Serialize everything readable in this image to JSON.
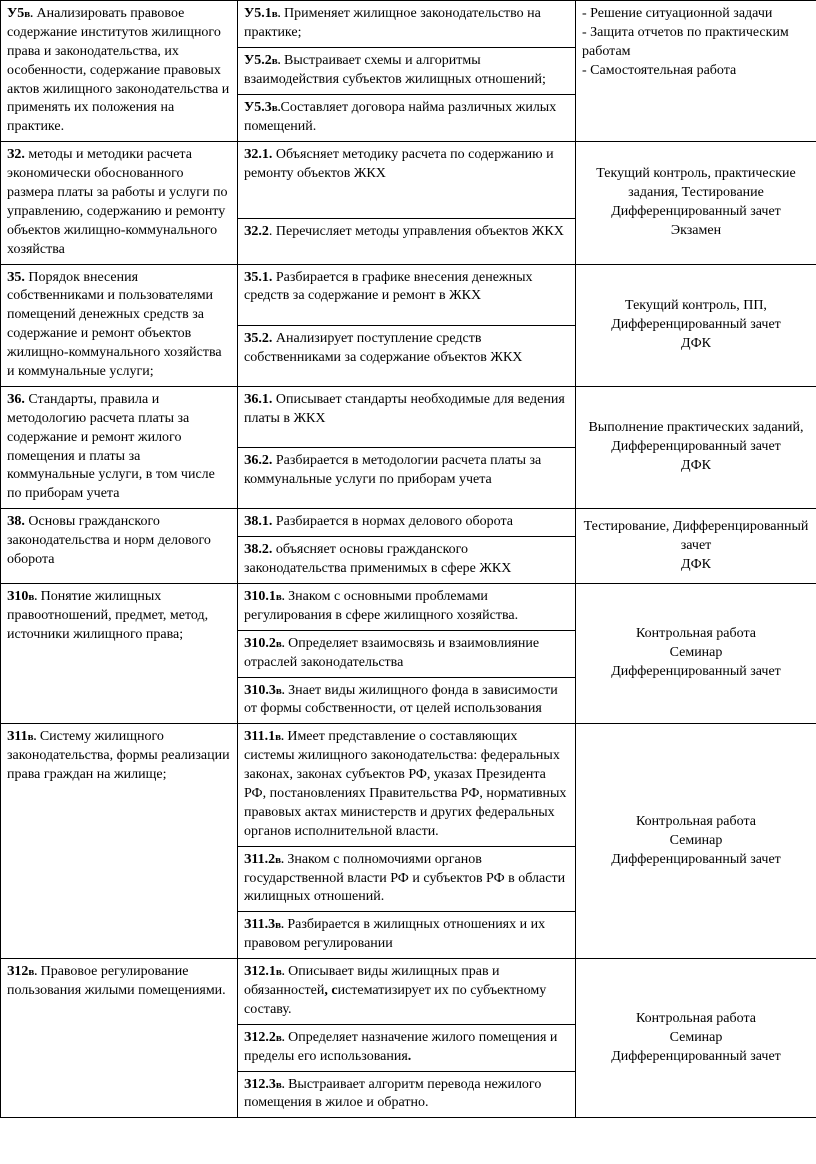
{
  "rows": [
    {
      "c1": {
        "bold": "У5в.",
        "sub": true,
        "text": " Анализировать правовое содержание институтов жилищного права и законодательства, их особенности, содержание правовых актов жилищного законодательства и применять их положения на практике.",
        "rowspan": 3
      },
      "c2": {
        "bold": "У5.1в.",
        "sub": true,
        "text": " Применяет жилищное законодательство на практике;"
      },
      "c3": {
        "text": "- Решение ситуационной задачи<br>- Защита отчетов по практическим работам<br>- Самостоятельная работа",
        "rowspan": 3
      }
    },
    {
      "c2": {
        "bold": "У5.2в.",
        "sub": true,
        "text": " Выстраивает схемы и алгоритмы взаимодействия субъектов жилищных отношений;"
      }
    },
    {
      "c2": {
        "bold": "У5.3в.",
        "sub": true,
        "text": "Составляет договора найма различных жилых помещений."
      }
    },
    {
      "c1": {
        "bold": "З2.",
        "text": " методы и методики расчета экономически обоснованного размера платы за работы и услуги по управлению, содержанию и ремонту объектов жилищно-коммунального хозяйства",
        "rowspan": 2
      },
      "c2": {
        "bold": "З2.1.",
        "text": " Объясняет методику расчета по содержанию и ремонту объектов ЖКХ"
      },
      "c3": {
        "text": "Текущий контроль, практические задания, Тестирование Дифференцированный зачет<br>Экзамен",
        "rowspan": 2,
        "center": true
      }
    },
    {
      "c2": {
        "bold": "З2.2",
        "text": ". Перечисляет методы управления объектов ЖКХ"
      }
    },
    {
      "c1": {
        "bold": "З5.",
        "text": " Порядок внесения собственниками и пользователями помещений денежных средств за содержание и ремонт объектов жилищно-коммунального хозяйства и коммунальные услуги;",
        "rowspan": 2
      },
      "c2": {
        "bold": "З5.1.",
        "text": " Разбирается в графике внесения денежных средств за содержание и ремонт в ЖКХ"
      },
      "c3": {
        "text": "Текущий контроль, ПП, Дифференцированный зачет<br>ДФК",
        "rowspan": 2,
        "center": true
      }
    },
    {
      "c2": {
        "bold": "З5.2.",
        "text": " Анализирует поступление средств собственниками за содержание объектов ЖКХ"
      }
    },
    {
      "c1": {
        "bold": "З6.",
        "text": " Стандарты, правила и методологию расчета платы за содержание и ремонт жилого помещения и платы за коммунальные услуги, в том числе по приборам учета",
        "rowspan": 2
      },
      "c2": {
        "bold": "З6.1.",
        "text": " Описывает стандарты необходимые для ведения платы в ЖКХ"
      },
      "c3": {
        "text": "Выполнение практических заданий, Дифференцированный зачет<br>ДФК",
        "rowspan": 2,
        "center": true
      }
    },
    {
      "c2": {
        "bold": "З6.2.",
        "text": " Разбирается в методологии расчета платы за коммунальные услуги по приборам учета"
      }
    },
    {
      "c1": {
        "bold": "З8.",
        "text": " Основы гражданского законодательства и норм делового оборота",
        "rowspan": 2
      },
      "c2": {
        "bold": "З8.1.",
        "text": " Разбирается в нормах делового оборота"
      },
      "c3": {
        "text": "Тестирование, Дифференцированный зачет<br>ДФК",
        "rowspan": 2,
        "center": true
      }
    },
    {
      "c2": {
        "bold": "З8.2.",
        "text": " объясняет основы гражданского законодательства применимых в сфере ЖКХ"
      }
    },
    {
      "c1": {
        "bold": "З10в.",
        "sub": true,
        "text": " Понятие жилищных правоотношений, предмет, метод, источники жилищного права;",
        "rowspan": 3
      },
      "c2": {
        "bold": "З10.1в.",
        "sub": true,
        "text": " Знаком с основными проблемами регулирования в сфере жилищного хозяйства."
      },
      "c3": {
        "text": "Контрольная работа<br>Семинар<br>Дифференцированный зачет",
        "rowspan": 3,
        "center": true
      }
    },
    {
      "c2": {
        "bold": "З10.2в.",
        "sub": true,
        "text": " Определяет взаимосвязь и взаимовлияние отраслей законодательства"
      }
    },
    {
      "c2": {
        "bold": "З10.3в.",
        "sub": true,
        "text": " Знает виды жилищного фонда в зависимости от формы собственности, от целей использования"
      }
    },
    {
      "c1": {
        "bold": "З11в.",
        "sub": true,
        "text": " Систему жилищного законодательства, формы реализации права граждан на жилище;",
        "rowspan": 3
      },
      "c2": {
        "bold": "З11.1в.",
        "sub": true,
        "text": " Имеет представление о составляющих системы жилищного законодательства: федеральных законах, законах субъектов РФ, указах Президента РФ, постановлениях Правительства РФ, нормативных правовых актах министерств и других федеральных органов исполнительной власти."
      },
      "c3": {
        "text": "Контрольная работа<br>Семинар<br>Дифференцированный зачет",
        "rowspan": 3,
        "center": true
      }
    },
    {
      "c2": {
        "bold": "З11.2в.",
        "sub": true,
        "text": " Знаком с полномочиями органов государственной власти РФ и субъектов РФ в области жилищных отношений."
      }
    },
    {
      "c2": {
        "bold": "З11.3в.",
        "sub": true,
        "text": " Разбирается в жилищных отношениях и их правовом регулировании"
      }
    },
    {
      "c1": {
        "bold": "З12в.",
        "sub": true,
        "text": " Правовое регулирование пользования жилыми помещениями.",
        "rowspan": 3
      },
      "c2": {
        "bold": "З12.1в.",
        "sub": true,
        "text": " Описывает виды жилищных прав и обязанностей<b>, с</b>истематизирует их по субъектному составу."
      },
      "c3": {
        "text": "Контрольная работа<br>Семинар<br>Дифференцированный зачет",
        "rowspan": 3,
        "center": true
      }
    },
    {
      "c2": {
        "bold": "З12.2в.",
        "sub": true,
        "text": " Определяет назначение жилого помещения и пределы его использования<b>.</b>"
      }
    },
    {
      "c2": {
        "bold": "З12.3в.",
        "sub": true,
        "text": " Выстраивает алгоритм перевода нежилого помещения в жилое и обратно."
      }
    }
  ]
}
